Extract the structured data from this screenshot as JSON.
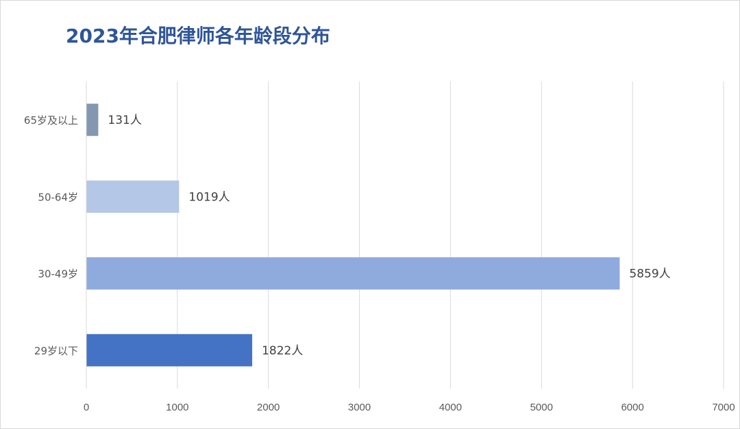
{
  "chart_data": {
    "type": "bar",
    "orientation": "horizontal",
    "title": "2023年合肥律师各年龄段分布",
    "categories": [
      "65岁及以上",
      "50-64岁",
      "30-49岁",
      "29岁以下"
    ],
    "values": [
      131,
      1019,
      5859,
      1822
    ],
    "data_labels": [
      "131人",
      "1019人",
      "5859人",
      "1822人"
    ],
    "bar_colors": [
      "#8497b0",
      "#b4c7e7",
      "#8faadc",
      "#4472c4"
    ],
    "xlabel": "",
    "ylabel": "",
    "xlim": [
      0,
      7000
    ],
    "x_ticks": [
      "0",
      "1000",
      "2000",
      "3000",
      "4000",
      "5000",
      "6000",
      "7000"
    ],
    "x_tick_values": [
      0,
      1000,
      2000,
      3000,
      4000,
      5000,
      6000,
      7000
    ],
    "grid": "vertical",
    "legend": "none"
  },
  "colors": {
    "title": "#2f5597",
    "grid": "#d9d9d9",
    "axis_text": "#595959",
    "label_text": "#404040"
  }
}
